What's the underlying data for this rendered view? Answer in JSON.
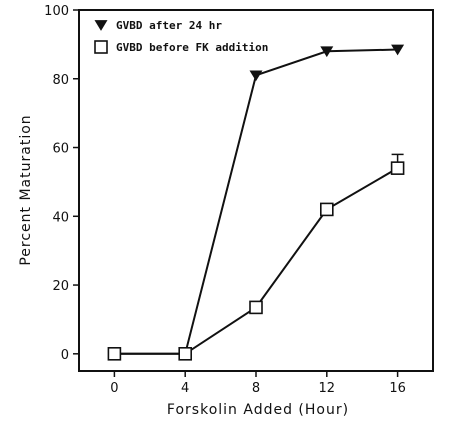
{
  "chart_data": {
    "type": "line",
    "xlabel": "Forskolin Added (Hour)",
    "ylabel": "Percent Maturation",
    "xlim": [
      -2,
      18
    ],
    "ylim": [
      -5,
      100
    ],
    "x_ticks": [
      0,
      4,
      8,
      12,
      16
    ],
    "y_ticks": [
      0,
      20,
      40,
      60,
      80,
      100
    ],
    "grid": false,
    "legend_position": "top-left",
    "x": [
      0,
      4,
      8,
      12,
      16
    ],
    "series": [
      {
        "name": "GVBD after 24 hr",
        "marker": "filled-down-triangle",
        "color": "#111111",
        "values": [
          0,
          0,
          81,
          88,
          88.5
        ]
      },
      {
        "name": "GVBD before FK addition",
        "marker": "open-square",
        "color": "#111111",
        "values": [
          0,
          0,
          13.5,
          42,
          54
        ],
        "error_upper": [
          0,
          0,
          0,
          0,
          4
        ]
      }
    ]
  }
}
